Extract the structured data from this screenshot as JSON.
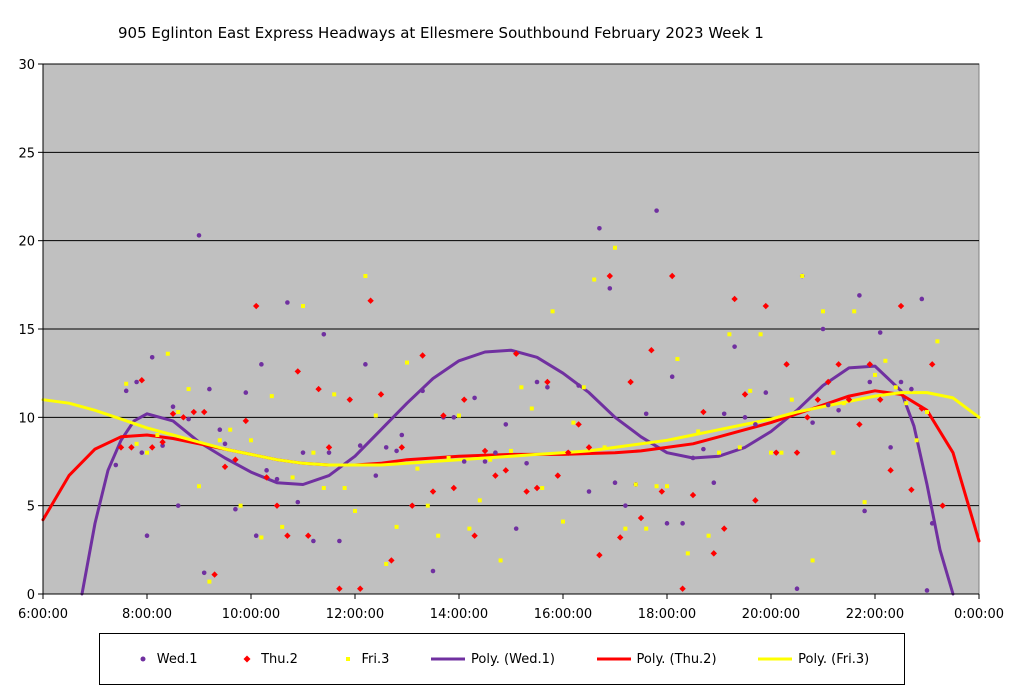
{
  "chart_data": {
    "type": "scatter",
    "title": "905 Eglinton East Express Headways at Ellesmere Southbound February 2023  Week 1",
    "xlabel": "",
    "ylabel": "",
    "x_unit": "hours",
    "xlim": [
      6,
      24
    ],
    "ylim": [
      0,
      30
    ],
    "x_tick_values": [
      6,
      8,
      10,
      12,
      14,
      16,
      18,
      20,
      22,
      24
    ],
    "x_tick_labels": [
      "6:00:00",
      "8:00:00",
      "10:00:00",
      "12:00:00",
      "14:00:00",
      "16:00:00",
      "18:00:00",
      "20:00:00",
      "22:00:00",
      "0:00:00"
    ],
    "y_tick_values": [
      0,
      5,
      10,
      15,
      20,
      25,
      30
    ],
    "y_tick_labels": [
      "0",
      "5",
      "10",
      "15",
      "20",
      "25",
      "30"
    ],
    "grid": "horizontal",
    "legend_position": "bottom",
    "series": [
      {
        "name": "Wed.1",
        "kind": "scatter",
        "marker": "circle",
        "color": "#7030A0",
        "x": [
          7.4,
          7.6,
          7.8,
          7.9,
          8.0,
          8.1,
          8.3,
          8.5,
          8.6,
          8.8,
          9.0,
          9.1,
          9.2,
          9.4,
          9.5,
          9.7,
          9.9,
          10.1,
          10.2,
          10.3,
          10.5,
          10.7,
          10.9,
          11.0,
          11.2,
          11.4,
          11.5,
          11.7,
          11.9,
          12.1,
          12.2,
          12.4,
          12.6,
          12.8,
          12.9,
          13.1,
          13.3,
          13.5,
          13.7,
          13.9,
          14.1,
          14.3,
          14.5,
          14.7,
          14.9,
          15.1,
          15.3,
          15.5,
          15.7,
          15.9,
          16.1,
          16.3,
          16.5,
          16.7,
          16.9,
          17.0,
          17.2,
          17.4,
          17.6,
          17.8,
          18.0,
          18.1,
          18.3,
          18.5,
          18.7,
          18.9,
          19.1,
          19.3,
          19.5,
          19.7,
          19.9,
          20.1,
          20.3,
          20.5,
          20.6,
          20.8,
          21.0,
          21.1,
          21.3,
          21.5,
          21.7,
          21.8,
          21.9,
          22.1,
          22.3,
          22.5,
          22.7,
          22.9,
          23.0,
          23.1
        ],
        "y": [
          7.3,
          11.5,
          12.0,
          8.0,
          3.3,
          13.4,
          8.4,
          10.6,
          5.0,
          9.9,
          20.3,
          1.2,
          11.6,
          9.3,
          8.5,
          4.8,
          11.4,
          3.3,
          13.0,
          7.0,
          6.5,
          16.5,
          5.2,
          8.0,
          3.0,
          14.7,
          8.0,
          3.0,
          11.0,
          8.4,
          13.0,
          6.7,
          8.3,
          8.1,
          9.0,
          5.0,
          11.5,
          1.3,
          10.0,
          10.0,
          7.5,
          11.1,
          7.5,
          8.0,
          9.6,
          3.7,
          7.4,
          12.0,
          11.7,
          6.7,
          8.0,
          11.8,
          5.8,
          20.7,
          17.3,
          6.3,
          5.0,
          6.2,
          10.2,
          21.7,
          4.0,
          12.3,
          4.0,
          7.7,
          8.2,
          6.3,
          10.2,
          14.0,
          10.0,
          9.6,
          11.4,
          8.0,
          13.0,
          0.3,
          18.0,
          9.7,
          15.0,
          10.7,
          10.4,
          11.0,
          16.9,
          4.7,
          12.0,
          14.8,
          8.3,
          12.0,
          11.6,
          16.7,
          0.2,
          4.0
        ]
      },
      {
        "name": "Thu.2",
        "kind": "scatter",
        "marker": "diamond",
        "color": "#FF0000",
        "x": [
          7.5,
          7.7,
          7.9,
          8.1,
          8.3,
          8.5,
          8.7,
          8.9,
          9.1,
          9.3,
          9.5,
          9.7,
          9.9,
          10.1,
          10.3,
          10.5,
          10.7,
          10.9,
          11.1,
          11.3,
          11.5,
          11.7,
          11.9,
          12.1,
          12.3,
          12.5,
          12.7,
          12.9,
          13.1,
          13.3,
          13.5,
          13.7,
          13.9,
          14.1,
          14.3,
          14.5,
          14.7,
          14.9,
          15.1,
          15.3,
          15.5,
          15.7,
          15.9,
          16.1,
          16.3,
          16.5,
          16.7,
          16.9,
          17.1,
          17.3,
          17.5,
          17.7,
          17.9,
          18.1,
          18.3,
          18.5,
          18.7,
          18.9,
          19.1,
          19.3,
          19.5,
          19.7,
          19.9,
          20.1,
          20.3,
          20.5,
          20.7,
          20.9,
          21.1,
          21.3,
          21.5,
          21.7,
          21.9,
          22.1,
          22.3,
          22.5,
          22.7,
          22.9,
          23.1,
          23.3
        ],
        "y": [
          8.3,
          8.3,
          12.1,
          8.3,
          8.6,
          10.2,
          10.0,
          10.3,
          10.3,
          1.1,
          7.2,
          7.6,
          9.8,
          16.3,
          6.6,
          5.0,
          3.3,
          12.6,
          3.3,
          11.6,
          8.3,
          0.3,
          11.0,
          0.3,
          16.6,
          11.3,
          1.9,
          8.3,
          5.0,
          13.5,
          5.8,
          10.1,
          6.0,
          11.0,
          3.3,
          8.1,
          6.7,
          7.0,
          13.6,
          5.8,
          6.0,
          12.0,
          6.7,
          8.0,
          9.6,
          8.3,
          2.2,
          18.0,
          3.2,
          12.0,
          4.3,
          13.8,
          5.8,
          18.0,
          0.3,
          5.6,
          10.3,
          2.3,
          3.7,
          16.7,
          11.3,
          5.3,
          16.3,
          8.0,
          13.0,
          8.0,
          10.0,
          11.0,
          12.0,
          13.0,
          11.0,
          9.6,
          13.0,
          11.0,
          7.0,
          16.3,
          5.9,
          10.5,
          13.0,
          5.0
        ]
      },
      {
        "name": "Fri.3",
        "kind": "scatter",
        "marker": "square",
        "color": "#FFFF00",
        "x": [
          7.6,
          7.8,
          8.0,
          8.2,
          8.4,
          8.6,
          8.8,
          9.0,
          9.2,
          9.4,
          9.6,
          9.8,
          10.0,
          10.2,
          10.4,
          10.6,
          10.8,
          11.0,
          11.2,
          11.4,
          11.6,
          11.8,
          12.0,
          12.2,
          12.4,
          12.6,
          12.8,
          13.0,
          13.2,
          13.4,
          13.6,
          13.8,
          14.0,
          14.2,
          14.4,
          14.6,
          14.8,
          15.0,
          15.2,
          15.4,
          15.6,
          15.8,
          16.0,
          16.2,
          16.4,
          16.6,
          16.8,
          17.0,
          17.2,
          17.4,
          17.6,
          17.8,
          18.0,
          18.2,
          18.4,
          18.6,
          18.8,
          19.0,
          19.2,
          19.4,
          19.6,
          19.8,
          20.0,
          20.2,
          20.4,
          20.6,
          20.8,
          21.0,
          21.2,
          21.4,
          21.6,
          21.8,
          22.0,
          22.2,
          22.4,
          22.6,
          22.8,
          23.0,
          23.2
        ],
        "y": [
          11.9,
          8.5,
          8.0,
          9.0,
          13.6,
          10.3,
          11.6,
          6.1,
          0.7,
          8.7,
          9.3,
          5.0,
          8.7,
          3.2,
          11.2,
          3.8,
          6.6,
          16.3,
          8.0,
          6.0,
          11.3,
          6.0,
          4.7,
          18.0,
          10.1,
          1.7,
          3.8,
          13.1,
          7.1,
          5.0,
          3.3,
          7.7,
          10.1,
          3.7,
          5.3,
          7.6,
          1.9,
          8.1,
          11.7,
          10.5,
          6.0,
          16.0,
          4.1,
          9.7,
          11.7,
          17.8,
          8.3,
          19.6,
          3.7,
          6.2,
          3.7,
          6.1,
          6.1,
          13.3,
          2.3,
          9.2,
          3.3,
          8.0,
          14.7,
          8.3,
          11.5,
          14.7,
          8.0,
          8.0,
          11.0,
          18.0,
          1.9,
          16.0,
          8.0,
          10.8,
          16.0,
          5.2,
          12.4,
          13.2,
          11.7,
          10.8,
          8.7,
          10.3,
          14.3
        ]
      },
      {
        "name": "Poly. (Wed.1)",
        "kind": "trendline",
        "color": "#7030A0",
        "x": [
          6.75,
          7.0,
          7.25,
          7.5,
          7.75,
          8.0,
          8.5,
          9.0,
          9.5,
          10.0,
          10.5,
          11.0,
          11.5,
          12.0,
          12.5,
          13.0,
          13.5,
          14.0,
          14.5,
          15.0,
          15.5,
          16.0,
          16.5,
          17.0,
          17.5,
          18.0,
          18.5,
          19.0,
          19.5,
          20.0,
          20.5,
          21.0,
          21.5,
          22.0,
          22.5,
          22.75,
          23.0,
          23.25,
          23.5
        ],
        "y": [
          0,
          4.0,
          7.0,
          8.7,
          9.8,
          10.2,
          9.8,
          8.6,
          7.7,
          6.9,
          6.3,
          6.2,
          6.7,
          7.8,
          9.3,
          10.8,
          12.2,
          13.2,
          13.7,
          13.8,
          13.4,
          12.5,
          11.4,
          10.0,
          8.9,
          8.0,
          7.7,
          7.8,
          8.3,
          9.2,
          10.4,
          11.8,
          12.8,
          12.9,
          11.5,
          9.5,
          6.2,
          2.5,
          0
        ]
      },
      {
        "name": "Poly. (Thu.2)",
        "kind": "trendline",
        "color": "#FF0000",
        "x": [
          6.0,
          6.5,
          7.0,
          7.5,
          8.0,
          8.5,
          9.0,
          9.5,
          10.0,
          10.5,
          11.0,
          11.5,
          12.0,
          12.5,
          13.0,
          13.5,
          14.0,
          14.5,
          15.0,
          15.5,
          16.0,
          16.5,
          17.0,
          17.5,
          18.0,
          18.5,
          19.0,
          19.5,
          20.0,
          20.5,
          21.0,
          21.5,
          22.0,
          22.5,
          23.0,
          23.5,
          24.0
        ],
        "y": [
          4.2,
          6.7,
          8.2,
          8.9,
          9.0,
          8.8,
          8.5,
          8.2,
          7.9,
          7.6,
          7.4,
          7.3,
          7.3,
          7.4,
          7.6,
          7.7,
          7.8,
          7.85,
          7.9,
          7.9,
          7.9,
          7.95,
          8.0,
          8.1,
          8.3,
          8.5,
          8.9,
          9.3,
          9.7,
          10.2,
          10.7,
          11.2,
          11.5,
          11.3,
          10.4,
          8.0,
          3.0
        ]
      },
      {
        "name": "Poly. (Fri.3)",
        "kind": "trendline",
        "color": "#FFFF00",
        "x": [
          6.0,
          6.5,
          7.0,
          7.5,
          8.0,
          8.5,
          9.0,
          9.5,
          10.0,
          10.5,
          11.0,
          11.5,
          12.0,
          12.5,
          13.0,
          13.5,
          14.0,
          14.5,
          15.0,
          15.5,
          16.0,
          16.5,
          17.0,
          17.5,
          18.0,
          18.5,
          19.0,
          19.5,
          20.0,
          20.5,
          21.0,
          21.5,
          22.0,
          22.5,
          23.0,
          23.5,
          24.0
        ],
        "y": [
          11.0,
          10.8,
          10.4,
          9.9,
          9.4,
          9.0,
          8.6,
          8.2,
          7.9,
          7.6,
          7.4,
          7.3,
          7.3,
          7.3,
          7.4,
          7.5,
          7.6,
          7.7,
          7.8,
          7.9,
          8.0,
          8.1,
          8.3,
          8.5,
          8.7,
          9.0,
          9.3,
          9.6,
          9.9,
          10.3,
          10.6,
          10.9,
          11.2,
          11.4,
          11.4,
          11.1,
          10.0
        ]
      }
    ]
  }
}
